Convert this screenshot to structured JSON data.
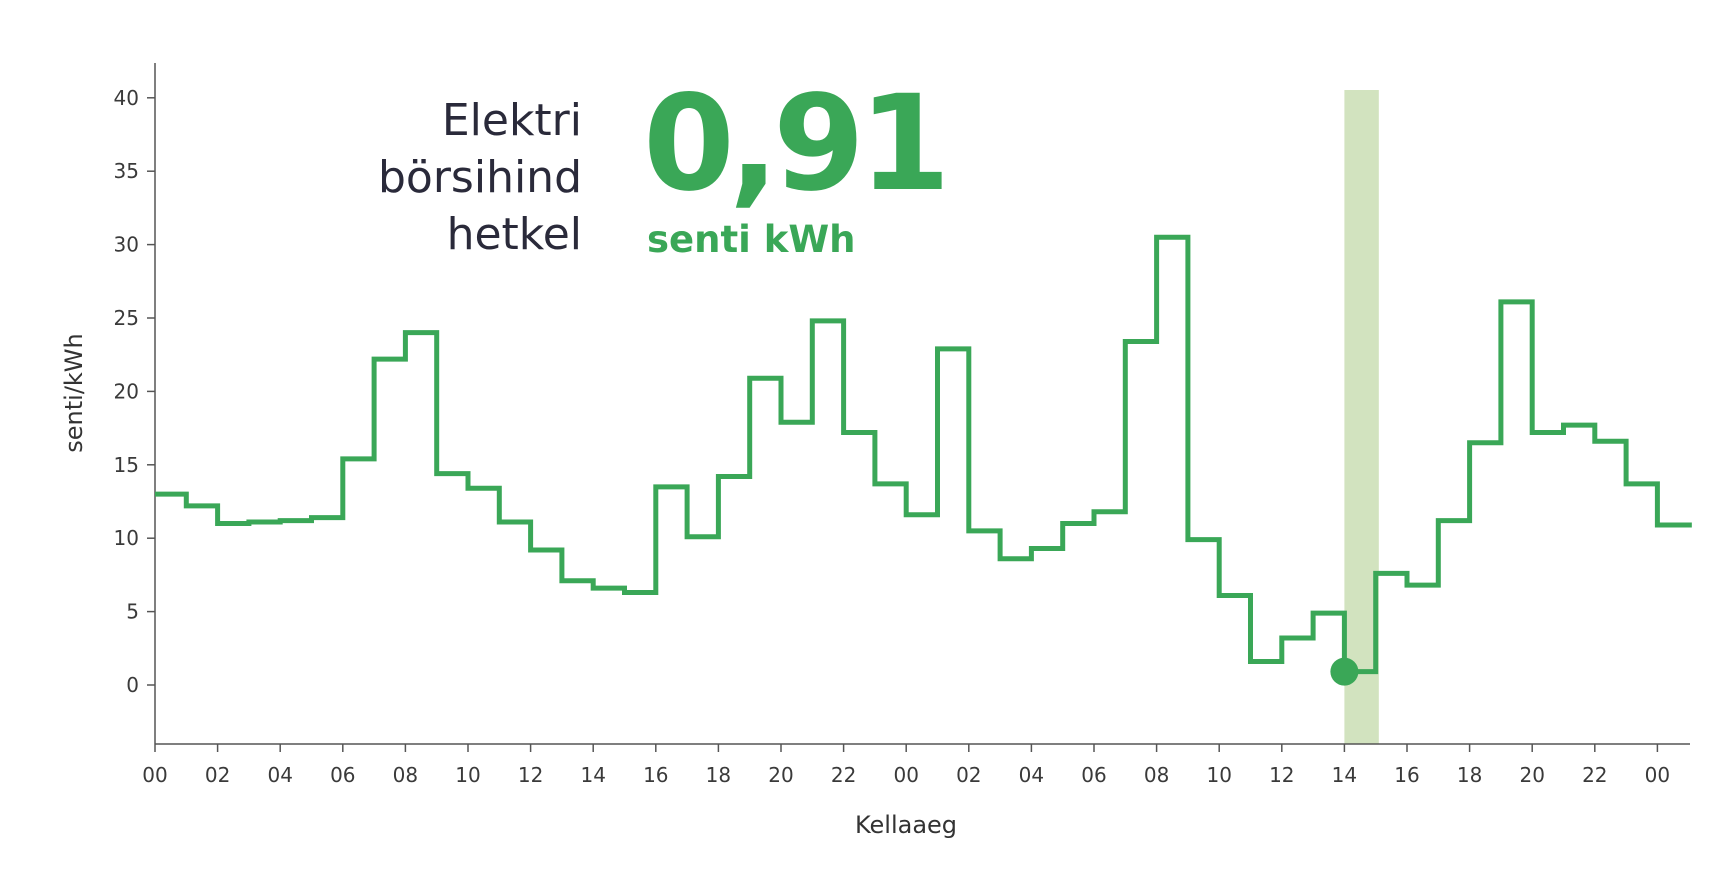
{
  "headline": {
    "lines": [
      "Elektri",
      "börsihind",
      "hetkel"
    ]
  },
  "current_price": {
    "value": "0,91",
    "unit": "senti kWh"
  },
  "colors": {
    "line": "#3aa757",
    "highlight": "#d2e3bf",
    "axis": "#555555",
    "headline_text": "#2a2a3a"
  },
  "chart_data": {
    "type": "line",
    "step": true,
    "xlabel": "Kellaaeg",
    "ylabel": "senti/kWh",
    "ylim": [
      -4,
      42
    ],
    "y_ticks": [
      0,
      5,
      10,
      15,
      20,
      25,
      30,
      35,
      40
    ],
    "x_tick_labels": [
      "00",
      "02",
      "04",
      "06",
      "08",
      "10",
      "12",
      "14",
      "16",
      "18",
      "20",
      "22",
      "00",
      "02",
      "04",
      "06",
      "08",
      "10",
      "12",
      "14",
      "16",
      "18",
      "20",
      "22",
      "00"
    ],
    "x_tick_hours": [
      0,
      2,
      4,
      6,
      8,
      10,
      12,
      14,
      16,
      18,
      20,
      22,
      24,
      26,
      28,
      30,
      32,
      34,
      36,
      38,
      40,
      42,
      44,
      46,
      48
    ],
    "xlim_hours": [
      0,
      49.1
    ],
    "highlight_hours": [
      38,
      39.1
    ],
    "current_point": {
      "hour": 38,
      "value": 0.91
    },
    "series": [
      {
        "hours": [
          0,
          1,
          2,
          3,
          4,
          5,
          6,
          7,
          8,
          9,
          10,
          11,
          12,
          13,
          14,
          15,
          16,
          17,
          18,
          19,
          20,
          21,
          22,
          23,
          24,
          25,
          26,
          27,
          28,
          29,
          30,
          31,
          32,
          33,
          34,
          35,
          36,
          37,
          38,
          39,
          40,
          41,
          42,
          43,
          44,
          45,
          46,
          47,
          48
        ],
        "values": [
          13.0,
          12.2,
          11.0,
          11.1,
          11.2,
          11.4,
          15.4,
          22.2,
          24.0,
          14.4,
          13.4,
          11.1,
          9.2,
          7.1,
          6.6,
          6.3,
          13.5,
          10.1,
          14.2,
          20.9,
          17.9,
          24.8,
          17.2,
          13.7,
          11.6,
          22.9,
          10.5,
          8.6,
          9.3,
          11.0,
          11.8,
          23.4,
          30.5,
          9.9,
          6.1,
          1.6,
          3.2,
          4.9,
          0.91,
          7.6,
          6.8,
          11.2,
          16.5,
          26.1,
          17.2,
          17.7,
          16.6,
          13.7,
          10.9
        ]
      }
    ]
  }
}
